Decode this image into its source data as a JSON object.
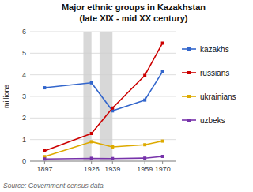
{
  "chart_data": {
    "type": "line",
    "title": "Major ethnic groups in Kazakhstan",
    "subtitle": "(late XIX - mid XX century)",
    "ylabel": "millions",
    "source": "Source: Government census data",
    "x": [
      1897,
      1926,
      1939,
      1959,
      1970
    ],
    "series": [
      {
        "name": "kazakhs",
        "color": "#3366cc",
        "marker": "square",
        "values": [
          3.4,
          3.63,
          2.33,
          2.83,
          4.15
        ]
      },
      {
        "name": "russians",
        "color": "#cc0000",
        "marker": "square",
        "values": [
          0.48,
          1.28,
          2.46,
          3.97,
          5.47
        ]
      },
      {
        "name": "ukrainians",
        "color": "#ddaa00",
        "marker": "square",
        "values": [
          0.21,
          0.9,
          0.66,
          0.76,
          0.93
        ]
      },
      {
        "name": "uzbeks",
        "color": "#7733aa",
        "marker": "square",
        "values": [
          0.1,
          0.13,
          0.12,
          0.14,
          0.22
        ]
      }
    ],
    "spans": [
      {
        "x": [
          1921,
          1926
        ],
        "color": "#d8d8d8"
      },
      {
        "x": [
          1931,
          1939
        ],
        "color": "#d8d8d8"
      }
    ],
    "xlim": [
      1888,
      1978
    ],
    "xticks": [
      1897,
      1926,
      1939,
      1959,
      1970
    ],
    "ylim": [
      0,
      6
    ],
    "yticks": [
      0,
      1,
      2,
      3,
      4,
      5,
      6
    ],
    "grid": true,
    "legend": "right"
  }
}
